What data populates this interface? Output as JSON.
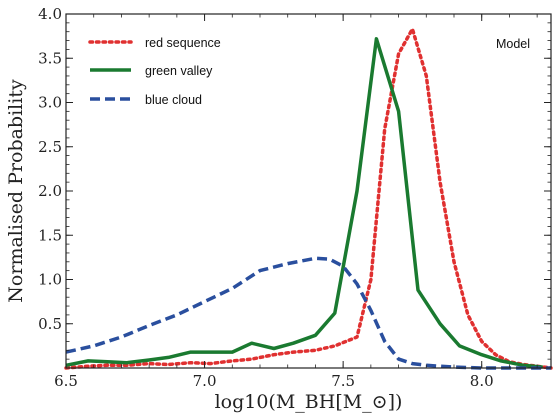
{
  "chart_data": {
    "type": "line",
    "xlabel": "log10(M_BH[M_⊙])",
    "ylabel": "Normalised Probability",
    "xlim": [
      6.5,
      8.25
    ],
    "ylim": [
      0.0,
      4.0
    ],
    "x_ticks": [
      6.5,
      7.0,
      7.5,
      8.0
    ],
    "x_tick_labels": [
      "6.5",
      "7.0",
      "7.5",
      "8.0"
    ],
    "y_ticks": [
      0.5,
      1.0,
      1.5,
      2.0,
      2.5,
      3.0,
      3.5,
      4.0
    ],
    "y_tick_labels": [
      "0.5",
      "1.0",
      "1.5",
      "2.0",
      "2.5",
      "3.0",
      "3.5",
      "4.0"
    ],
    "annotation": "Model",
    "legend_position": "top-left",
    "grid": false,
    "series": [
      {
        "name": "red sequence",
        "color": "#e03030",
        "style": "dotted",
        "x": [
          6.5,
          6.58,
          6.65,
          6.72,
          6.8,
          6.87,
          6.95,
          7.02,
          7.1,
          7.17,
          7.25,
          7.32,
          7.4,
          7.47,
          7.55,
          7.6,
          7.65,
          7.7,
          7.75,
          7.8,
          7.85,
          7.9,
          7.95,
          8.0,
          8.05,
          8.1,
          8.15,
          8.2,
          8.25
        ],
        "y": [
          0.0,
          0.02,
          0.03,
          0.03,
          0.05,
          0.04,
          0.06,
          0.05,
          0.08,
          0.1,
          0.15,
          0.18,
          0.2,
          0.25,
          0.35,
          1.0,
          2.7,
          3.55,
          3.83,
          3.3,
          2.1,
          1.2,
          0.6,
          0.3,
          0.15,
          0.07,
          0.04,
          0.02,
          0.0
        ]
      },
      {
        "name": "green valley",
        "color": "#1a7a30",
        "style": "solid",
        "x": [
          6.5,
          6.58,
          6.65,
          6.72,
          6.8,
          6.87,
          6.95,
          7.02,
          7.1,
          7.17,
          7.25,
          7.32,
          7.4,
          7.47,
          7.55,
          7.62,
          7.7,
          7.77,
          7.85,
          7.92,
          8.0,
          8.07,
          8.15,
          8.22
        ],
        "y": [
          0.03,
          0.08,
          0.07,
          0.06,
          0.09,
          0.12,
          0.18,
          0.18,
          0.18,
          0.28,
          0.22,
          0.28,
          0.37,
          0.62,
          2.0,
          3.72,
          2.9,
          0.88,
          0.5,
          0.25,
          0.15,
          0.08,
          0.03,
          0.01
        ]
      },
      {
        "name": "blue cloud",
        "color": "#2a4f9e",
        "style": "dashed",
        "x": [
          6.5,
          6.6,
          6.7,
          6.8,
          6.9,
          7.0,
          7.1,
          7.2,
          7.3,
          7.4,
          7.45,
          7.5,
          7.55,
          7.6,
          7.65,
          7.7,
          7.75,
          7.8,
          7.9,
          8.0,
          8.1,
          8.2,
          8.25
        ],
        "y": [
          0.18,
          0.25,
          0.35,
          0.48,
          0.6,
          0.75,
          0.9,
          1.1,
          1.18,
          1.24,
          1.23,
          1.15,
          0.95,
          0.65,
          0.3,
          0.1,
          0.05,
          0.03,
          0.01,
          0.0,
          0.0,
          0.0,
          0.0
        ]
      }
    ]
  }
}
